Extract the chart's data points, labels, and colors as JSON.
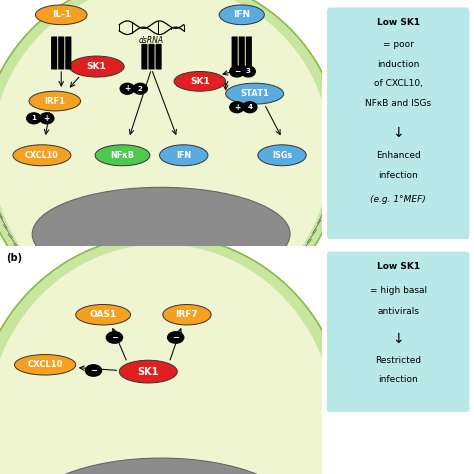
{
  "bg_color": "#ffffff",
  "cell_membrane_outer": "#c8e6a0",
  "cell_membrane_inner": "#eef5d0",
  "nucleus_color": "#8c8c8c",
  "nucleus_edge": "#666666",
  "cyan_box_color": "#b8e8e8",
  "orange_color": "#f5a020",
  "red_color": "#e02020",
  "green_color": "#50c850",
  "blue_color": "#5aabdf",
  "stat1_color": "#5aabdf",
  "membrane_tick_color": "#555555",
  "receptor_color": "#111111",
  "arrow_color": "#111111",
  "panel_a_note_lines": [
    "Low SK1",
    "= poor",
    "induction",
    "of CXCL10,",
    "NFκB and ISGs",
    "↓",
    "Enhanced",
    "infection",
    "(e.g. 1°MEF)"
  ],
  "panel_b_note_lines": [
    "Low SK1",
    "= high basal",
    "antivirals",
    "↓",
    "Restricted",
    "infection"
  ]
}
